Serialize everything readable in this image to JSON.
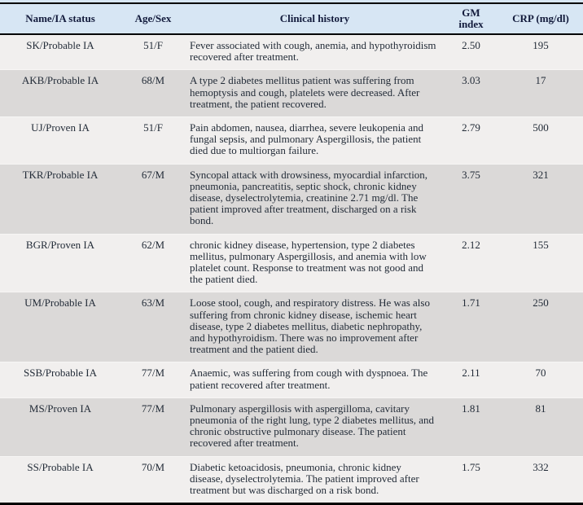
{
  "table": {
    "columns": {
      "name_status": "Name/IA status",
      "age_sex": "Age/Sex",
      "clinical_history": "Clinical history",
      "gm_index": "GM index",
      "crp": "CRP (mg/dl)"
    },
    "rows": [
      {
        "name_status": "SK/Probable IA",
        "age_sex": "51/F",
        "clinical_history": "Fever associated with cough, anemia, and hypothyroidism recovered after treatment.",
        "gm_index": "2.50",
        "crp": "195"
      },
      {
        "name_status": "AKB/Probable IA",
        "age_sex": "68/M",
        "clinical_history": "A type 2 diabetes mellitus patient was suffering from hemoptysis and cough, platelets were decreased. After treatment, the patient recovered.",
        "gm_index": "3.03",
        "crp": "17"
      },
      {
        "name_status": "UJ/Proven IA",
        "age_sex": "51/F",
        "clinical_history": "Pain abdomen, nausea, diarrhea, severe leukopenia and fungal sepsis, and pulmonary Aspergillosis, the patient died due to multiorgan failure.",
        "gm_index": "2.79",
        "crp": "500"
      },
      {
        "name_status": "TKR/Probable IA",
        "age_sex": "67/M",
        "clinical_history": "Syncopal attack with drowsiness, myocardial infarction, pneumonia, pancreatitis, septic shock, chronic kidney disease, dyselectrolytemia, creatinine 2.71 mg/dl. The patient improved after treatment, discharged on a risk bond.",
        "gm_index": "3.75",
        "crp": "321"
      },
      {
        "name_status": "BGR/Proven IA",
        "age_sex": "62/M",
        "clinical_history": "chronic kidney disease, hypertension, type 2 diabetes mellitus, pulmonary Aspergillosis, and anemia with low platelet count. Response to treatment was not good and the patient died.",
        "gm_index": "2.12",
        "crp": "155"
      },
      {
        "name_status": "UM/Probable IA",
        "age_sex": "63/M",
        "clinical_history": "Loose stool, cough, and respiratory distress. He was also suffering from chronic kidney disease, ischemic heart disease, type 2 diabetes mellitus, diabetic nephropathy, and hypothyroidism. There was no improvement after treatment and the patient died.",
        "gm_index": "1.71",
        "crp": "250"
      },
      {
        "name_status": "SSB/Probable IA",
        "age_sex": "77/M",
        "clinical_history": "Anaemic, was suffering from cough with dyspnoea. The patient recovered after treatment.",
        "gm_index": "2.11",
        "crp": "70"
      },
      {
        "name_status": "MS/Proven IA",
        "age_sex": "77/M",
        "clinical_history": "Pulmonary aspergillosis with aspergilloma, cavitary pneumonia of the right lung, type 2 diabetes mellitus, and chronic obstructive pulmonary disease. The patient recovered after treatment.",
        "gm_index": "1.81",
        "crp": "81"
      },
      {
        "name_status": "SS/Probable IA",
        "age_sex": "70/M",
        "clinical_history": "Diabetic ketoacidosis, pneumonia, chronic kidney disease, dyselectrolytemia. The patient improved after treatment but was discharged on a risk bond.",
        "gm_index": "1.75",
        "crp": "332"
      }
    ]
  },
  "colors": {
    "header_bg": "#d7e6f4",
    "row_light": "#f1efee",
    "row_dark": "#dbd9d8",
    "border": "#000000",
    "body_text": "#232c38",
    "header_text": "#131b3c"
  }
}
